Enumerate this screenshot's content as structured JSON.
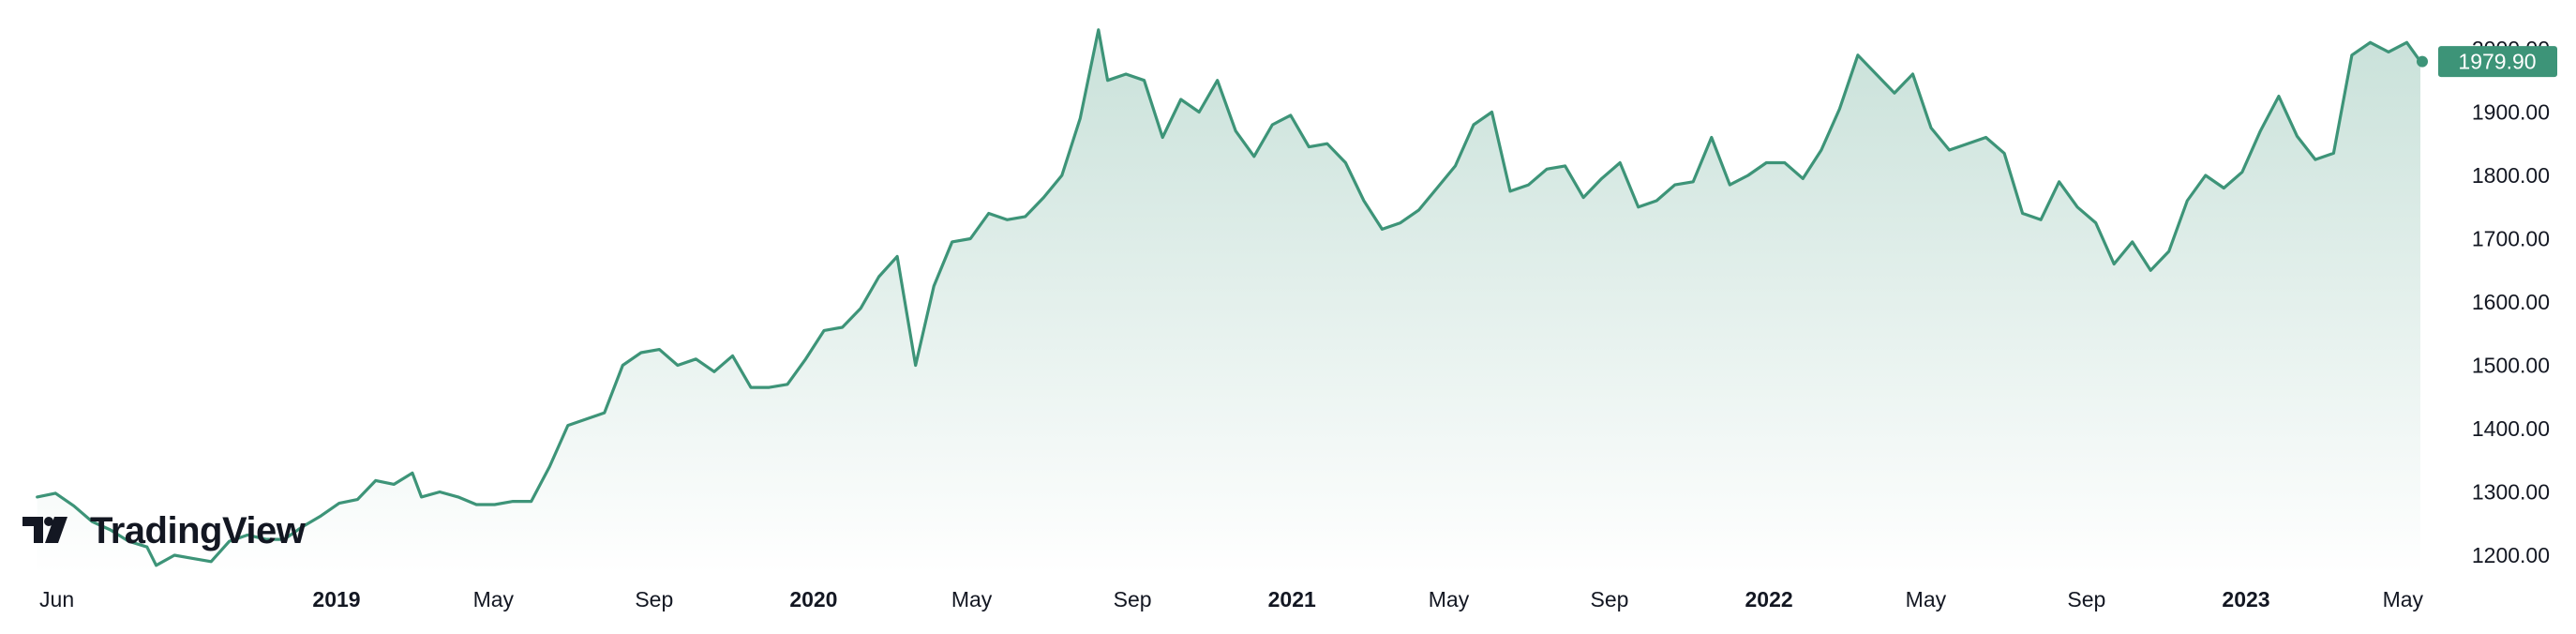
{
  "logo": {
    "brand_text": "TradingView"
  },
  "colors": {
    "line": "#3d9478",
    "area_top": "#3d9478",
    "area_bottom": "#ffffff",
    "price_label_bg": "#3d9478",
    "price_label_text": "#ffffff",
    "axis_text": "#131722"
  },
  "chart_data": {
    "type": "area",
    "title": "",
    "xlabel": "",
    "ylabel": "",
    "last_price": "1979.90",
    "ylim": [
      1185,
      2050
    ],
    "y_ticks": [
      "1200.00",
      "1300.00",
      "1400.00",
      "1500.00",
      "1600.00",
      "1700.00",
      "1800.00",
      "1900.00",
      "2000.00"
    ],
    "x_ticks": [
      {
        "label": "Jun",
        "date": "2018-06-01",
        "year": false
      },
      {
        "label": "2019",
        "date": "2019-01-01",
        "year": true
      },
      {
        "label": "May",
        "date": "2019-05-01",
        "year": false
      },
      {
        "label": "Sep",
        "date": "2019-09-01",
        "year": false
      },
      {
        "label": "2020",
        "date": "2020-01-01",
        "year": true
      },
      {
        "label": "May",
        "date": "2020-05-01",
        "year": false
      },
      {
        "label": "Sep",
        "date": "2020-09-01",
        "year": false
      },
      {
        "label": "2021",
        "date": "2021-01-01",
        "year": true
      },
      {
        "label": "May",
        "date": "2021-05-01",
        "year": false
      },
      {
        "label": "Sep",
        "date": "2021-09-01",
        "year": false
      },
      {
        "label": "2022",
        "date": "2022-01-01",
        "year": true
      },
      {
        "label": "May",
        "date": "2022-05-01",
        "year": false
      },
      {
        "label": "Sep",
        "date": "2022-09-01",
        "year": false
      },
      {
        "label": "2023",
        "date": "2023-01-01",
        "year": true
      },
      {
        "label": "May",
        "date": "2023-05-01",
        "year": false
      }
    ],
    "series": [
      {
        "points": [
          [
            "2018-05-17",
            1292
          ],
          [
            "2018-05-31",
            1298
          ],
          [
            "2018-06-14",
            1278
          ],
          [
            "2018-06-28",
            1253
          ],
          [
            "2018-07-12",
            1240
          ],
          [
            "2018-07-26",
            1222
          ],
          [
            "2018-08-09",
            1213
          ],
          [
            "2018-08-16",
            1184
          ],
          [
            "2018-08-30",
            1200
          ],
          [
            "2018-09-13",
            1195
          ],
          [
            "2018-09-27",
            1190
          ],
          [
            "2018-10-11",
            1222
          ],
          [
            "2018-10-25",
            1232
          ],
          [
            "2018-11-08",
            1225
          ],
          [
            "2018-11-22",
            1225
          ],
          [
            "2018-12-06",
            1245
          ],
          [
            "2018-12-20",
            1262
          ],
          [
            "2019-01-03",
            1282
          ],
          [
            "2019-01-17",
            1288
          ],
          [
            "2019-01-31",
            1318
          ],
          [
            "2019-02-14",
            1312
          ],
          [
            "2019-02-28",
            1330
          ],
          [
            "2019-03-07",
            1292
          ],
          [
            "2019-03-21",
            1300
          ],
          [
            "2019-04-04",
            1292
          ],
          [
            "2019-04-18",
            1280
          ],
          [
            "2019-05-02",
            1280
          ],
          [
            "2019-05-16",
            1285
          ],
          [
            "2019-05-30",
            1285
          ],
          [
            "2019-06-13",
            1340
          ],
          [
            "2019-06-27",
            1405
          ],
          [
            "2019-07-11",
            1415
          ],
          [
            "2019-07-25",
            1425
          ],
          [
            "2019-08-08",
            1500
          ],
          [
            "2019-08-22",
            1520
          ],
          [
            "2019-09-05",
            1525
          ],
          [
            "2019-09-19",
            1500
          ],
          [
            "2019-10-03",
            1510
          ],
          [
            "2019-10-17",
            1490
          ],
          [
            "2019-10-31",
            1515
          ],
          [
            "2019-11-14",
            1465
          ],
          [
            "2019-11-28",
            1465
          ],
          [
            "2019-12-12",
            1470
          ],
          [
            "2019-12-26",
            1510
          ],
          [
            "2020-01-09",
            1555
          ],
          [
            "2020-01-23",
            1560
          ],
          [
            "2020-02-06",
            1590
          ],
          [
            "2020-02-20",
            1640
          ],
          [
            "2020-03-05",
            1672
          ],
          [
            "2020-03-19",
            1500
          ],
          [
            "2020-04-02",
            1625
          ],
          [
            "2020-04-16",
            1695
          ],
          [
            "2020-04-30",
            1700
          ],
          [
            "2020-05-14",
            1740
          ],
          [
            "2020-05-28",
            1730
          ],
          [
            "2020-06-11",
            1735
          ],
          [
            "2020-06-25",
            1765
          ],
          [
            "2020-07-09",
            1800
          ],
          [
            "2020-07-23",
            1890
          ],
          [
            "2020-08-06",
            2030
          ],
          [
            "2020-08-13",
            1950
          ],
          [
            "2020-08-27",
            1960
          ],
          [
            "2020-09-10",
            1950
          ],
          [
            "2020-09-24",
            1860
          ],
          [
            "2020-10-08",
            1920
          ],
          [
            "2020-10-22",
            1900
          ],
          [
            "2020-11-05",
            1950
          ],
          [
            "2020-11-19",
            1870
          ],
          [
            "2020-12-03",
            1830
          ],
          [
            "2020-12-17",
            1880
          ],
          [
            "2020-12-31",
            1895
          ],
          [
            "2021-01-14",
            1845
          ],
          [
            "2021-01-28",
            1850
          ],
          [
            "2021-02-11",
            1820
          ],
          [
            "2021-02-25",
            1760
          ],
          [
            "2021-03-11",
            1715
          ],
          [
            "2021-03-25",
            1725
          ],
          [
            "2021-04-08",
            1745
          ],
          [
            "2021-04-22",
            1780
          ],
          [
            "2021-05-06",
            1815
          ],
          [
            "2021-05-20",
            1880
          ],
          [
            "2021-06-03",
            1900
          ],
          [
            "2021-06-17",
            1775
          ],
          [
            "2021-07-01",
            1785
          ],
          [
            "2021-07-15",
            1810
          ],
          [
            "2021-07-29",
            1815
          ],
          [
            "2021-08-12",
            1765
          ],
          [
            "2021-08-26",
            1795
          ],
          [
            "2021-09-09",
            1820
          ],
          [
            "2021-09-23",
            1750
          ],
          [
            "2021-10-07",
            1760
          ],
          [
            "2021-10-21",
            1785
          ],
          [
            "2021-11-04",
            1790
          ],
          [
            "2021-11-18",
            1860
          ],
          [
            "2021-12-02",
            1785
          ],
          [
            "2021-12-16",
            1800
          ],
          [
            "2021-12-30",
            1820
          ],
          [
            "2022-01-13",
            1820
          ],
          [
            "2022-01-27",
            1795
          ],
          [
            "2022-02-10",
            1840
          ],
          [
            "2022-02-24",
            1905
          ],
          [
            "2022-03-10",
            1990
          ],
          [
            "2022-03-24",
            1960
          ],
          [
            "2022-04-07",
            1930
          ],
          [
            "2022-04-21",
            1960
          ],
          [
            "2022-05-05",
            1875
          ],
          [
            "2022-05-19",
            1840
          ],
          [
            "2022-06-02",
            1850
          ],
          [
            "2022-06-16",
            1860
          ],
          [
            "2022-06-30",
            1835
          ],
          [
            "2022-07-14",
            1740
          ],
          [
            "2022-07-28",
            1730
          ],
          [
            "2022-08-11",
            1790
          ],
          [
            "2022-08-25",
            1750
          ],
          [
            "2022-09-08",
            1725
          ],
          [
            "2022-09-22",
            1660
          ],
          [
            "2022-10-06",
            1695
          ],
          [
            "2022-10-20",
            1650
          ],
          [
            "2022-11-03",
            1680
          ],
          [
            "2022-11-17",
            1760
          ],
          [
            "2022-12-01",
            1800
          ],
          [
            "2022-12-15",
            1780
          ],
          [
            "2022-12-29",
            1805
          ],
          [
            "2023-01-12",
            1870
          ],
          [
            "2023-01-26",
            1925
          ],
          [
            "2023-02-09",
            1862
          ],
          [
            "2023-02-23",
            1825
          ],
          [
            "2023-03-09",
            1835
          ],
          [
            "2023-03-23",
            1990
          ],
          [
            "2023-04-06",
            2010
          ],
          [
            "2023-04-20",
            1995
          ],
          [
            "2023-05-04",
            2010
          ],
          [
            "2023-05-18",
            1979.9
          ]
        ]
      }
    ]
  }
}
